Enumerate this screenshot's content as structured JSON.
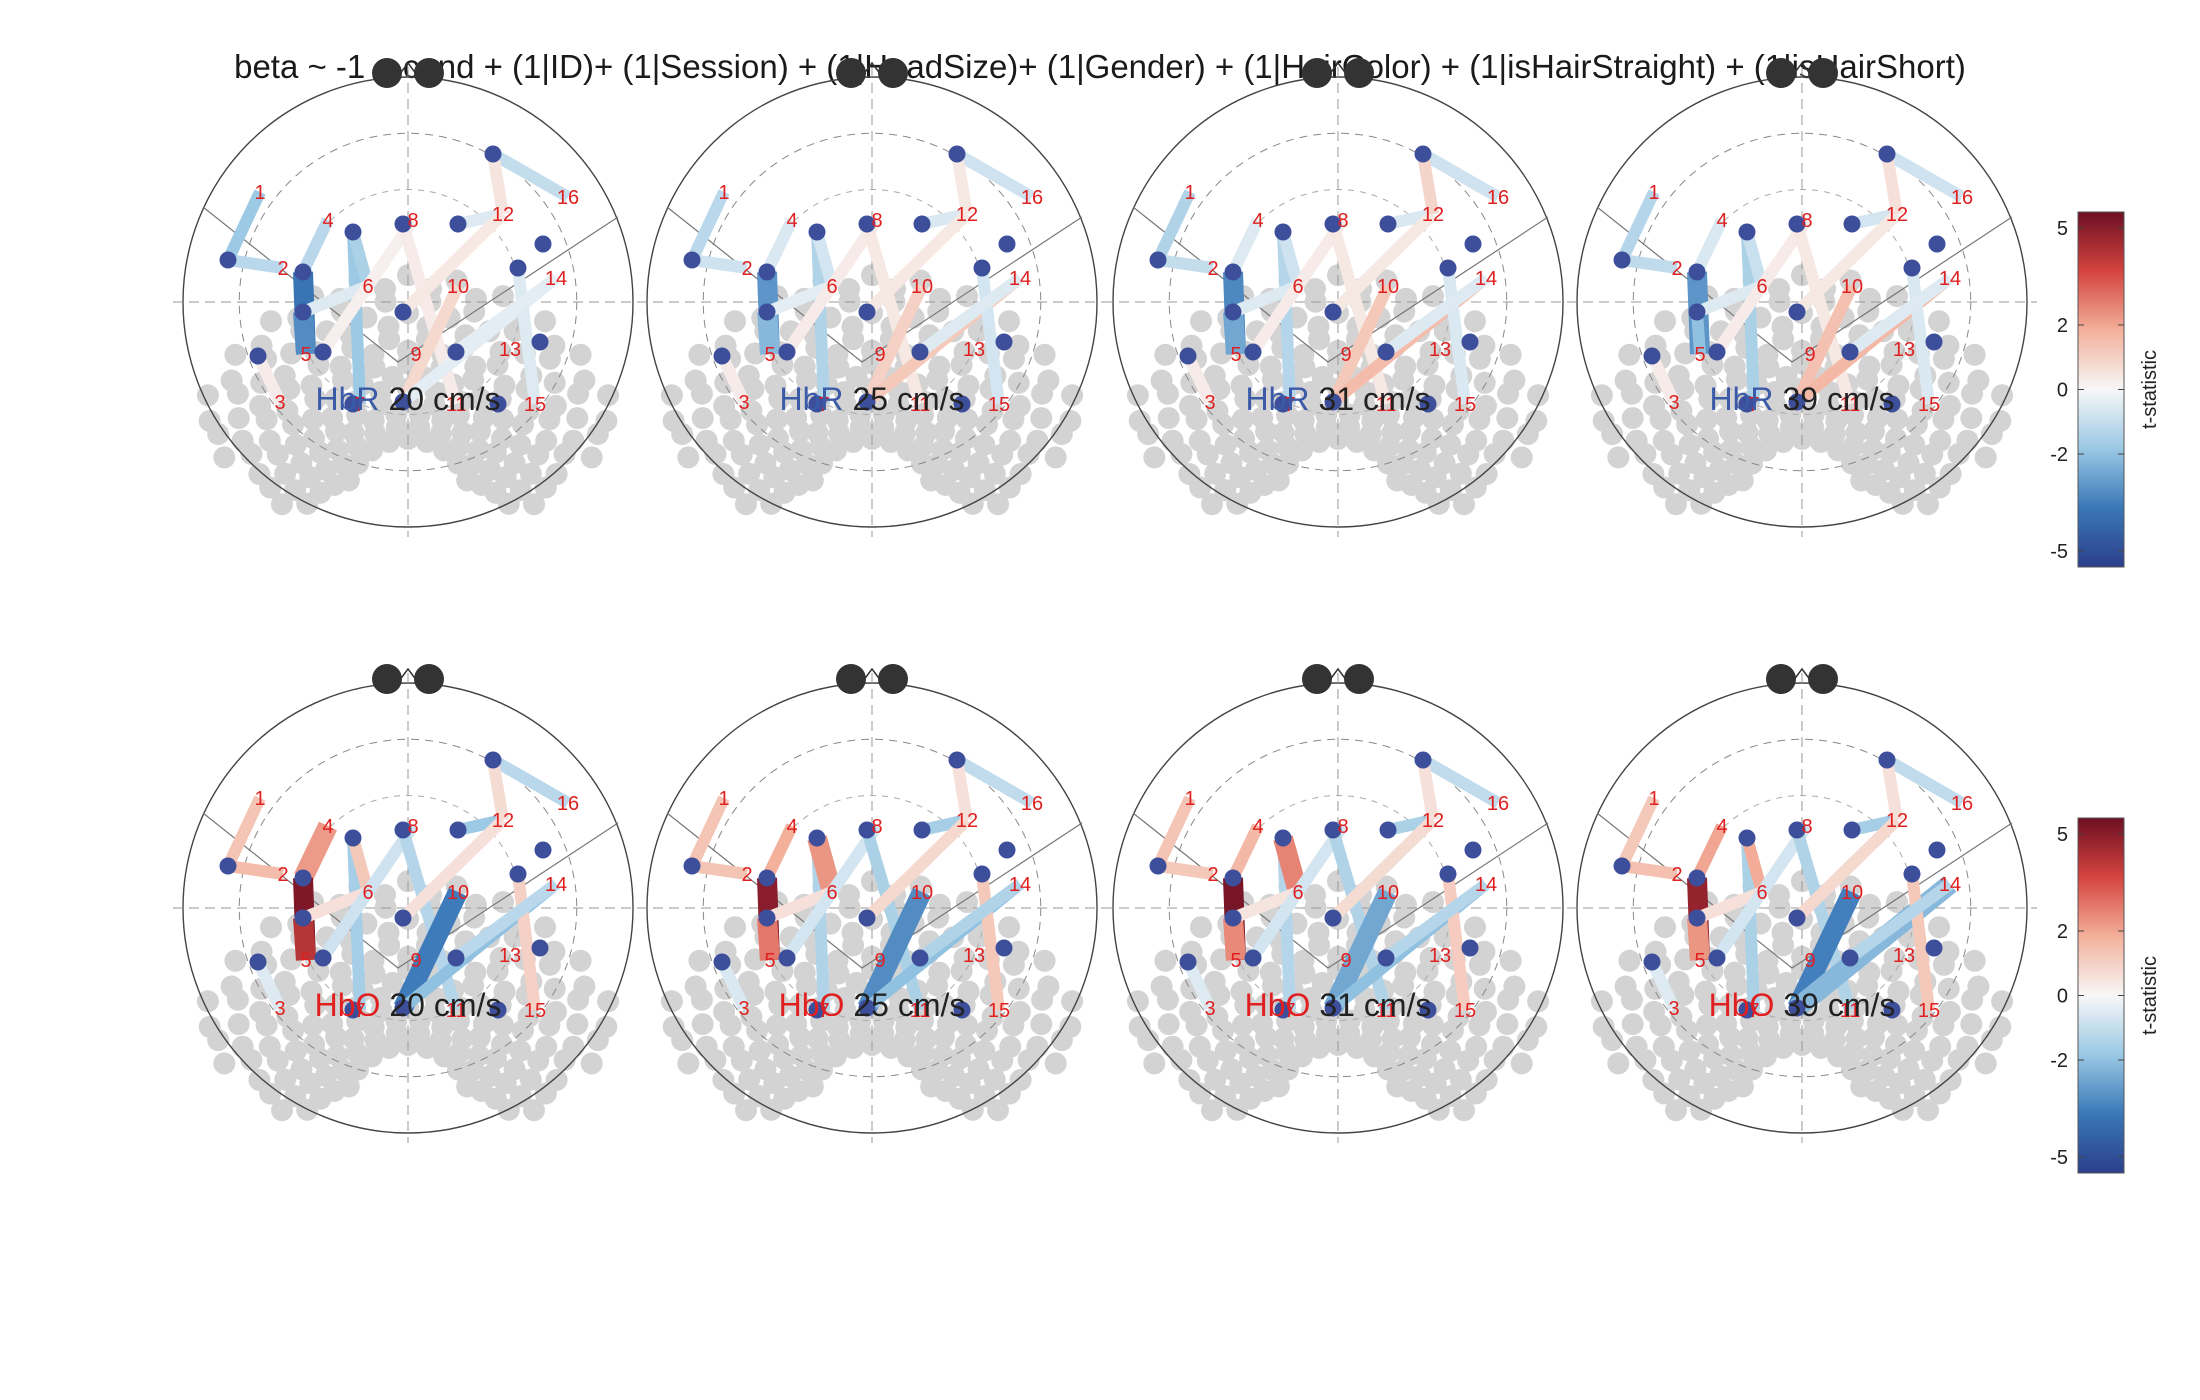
{
  "title": "beta ~ -1 + cond + (1|ID)+ (1|Session) + (1|HeadSize)+ (1|Gender) + (1|HairColor) + (1|isHairStraight) + (1|isHairShort)",
  "colors": {
    "hbr_label": "#3a5aa8",
    "hbo_label": "#e02020",
    "source_dot": "#3d4f9a",
    "detector_text": "#e02020",
    "electrode_dot": "#d3d3d3",
    "nose_dot": "#333333",
    "outline": "#444444",
    "colorscale": [
      "#2c3f8c",
      "#3a78b8",
      "#9ac8e4",
      "#f7f7f7",
      "#f3b09a",
      "#d4443f",
      "#6d0f23"
    ]
  },
  "rows": [
    {
      "chromophore": "HbR",
      "panels": [
        {
          "chromophore": "HbR",
          "speed": "20 cm/s"
        },
        {
          "chromophore": "HbR",
          "speed": "25 cm/s"
        },
        {
          "chromophore": "HbR",
          "speed": "31 cm/s"
        },
        {
          "chromophore": "HbR",
          "speed": "39 cm/s"
        }
      ],
      "colorbar": {
        "label": "t-statistic",
        "ticks": [
          "5",
          "2",
          "0",
          "-2",
          "-5"
        ]
      }
    },
    {
      "chromophore": "HbO",
      "panels": [
        {
          "chromophore": "HbO",
          "speed": "20 cm/s"
        },
        {
          "chromophore": "HbO",
          "speed": "25 cm/s"
        },
        {
          "chromophore": "HbO",
          "speed": "31 cm/s"
        },
        {
          "chromophore": "HbO",
          "speed": "39 cm/s"
        }
      ],
      "colorbar": {
        "label": "t-statistic",
        "ticks": [
          "5",
          "2",
          "0",
          "-2",
          "-5"
        ]
      }
    }
  ],
  "optodes": {
    "sources": [
      "1",
      "2",
      "3",
      "4",
      "5",
      "6",
      "7",
      "8",
      "9",
      "10",
      "11",
      "12",
      "13",
      "14",
      "15",
      "16",
      "17"
    ],
    "detectors": [
      "1",
      "2",
      "3",
      "4",
      "5",
      "6",
      "7",
      "8",
      "9",
      "10",
      "11",
      "12",
      "13",
      "14",
      "15",
      "16"
    ]
  },
  "colorbar_range": [
    -5.5,
    5.5
  ],
  "channels": {
    "note_units": "t-statistic",
    "hbr": [
      [
        [
          1,
          2,
          -1.2
        ],
        [
          2,
          4,
          -1.2
        ],
        [
          4,
          7,
          -1.8
        ],
        [
          4,
          6,
          -1.5
        ],
        [
          2,
          5,
          -3.8
        ],
        [
          5,
          5,
          -3.2
        ],
        [
          1,
          1,
          -1.8
        ],
        [
          5,
          6,
          -0.5
        ],
        [
          6,
          8,
          0.2
        ],
        [
          8,
          11,
          0.3
        ],
        [
          10,
          10,
          0.8
        ],
        [
          10,
          14,
          -0.4
        ],
        [
          14,
          15,
          -0.5
        ],
        [
          12,
          14,
          -0.4
        ],
        [
          11,
          12,
          -0.5
        ],
        [
          13,
          16,
          -1.0
        ],
        [
          9,
          12,
          0.4
        ],
        [
          13,
          12,
          0.5
        ],
        [
          3,
          3,
          0.3
        ]
      ],
      [
        [
          1,
          2,
          -0.8
        ],
        [
          2,
          4,
          -0.6
        ],
        [
          4,
          7,
          -1.4
        ],
        [
          4,
          6,
          -0.7
        ],
        [
          2,
          5,
          -3.0
        ],
        [
          5,
          5,
          -2.2
        ],
        [
          1,
          1,
          -1.2
        ],
        [
          5,
          6,
          -0.4
        ],
        [
          6,
          8,
          0.3
        ],
        [
          8,
          11,
          0.4
        ],
        [
          10,
          10,
          1.0
        ],
        [
          10,
          14,
          1.2
        ],
        [
          14,
          15,
          -0.7
        ],
        [
          12,
          14,
          -0.5
        ],
        [
          11,
          12,
          -0.6
        ],
        [
          13,
          16,
          -0.8
        ],
        [
          9,
          12,
          0.4
        ],
        [
          13,
          12,
          0.4
        ],
        [
          3,
          3,
          0.3
        ]
      ],
      [
        [
          1,
          2,
          -1.0
        ],
        [
          2,
          4,
          -0.5
        ],
        [
          4,
          7,
          -1.3
        ],
        [
          4,
          6,
          -0.8
        ],
        [
          2,
          5,
          -3.3
        ],
        [
          5,
          5,
          -2.6
        ],
        [
          1,
          1,
          -1.4
        ],
        [
          5,
          6,
          -0.5
        ],
        [
          6,
          8,
          0.3
        ],
        [
          8,
          11,
          0.4
        ],
        [
          10,
          10,
          1.2
        ],
        [
          10,
          14,
          1.5
        ],
        [
          14,
          15,
          -0.6
        ],
        [
          12,
          14,
          -0.5
        ],
        [
          11,
          12,
          -0.6
        ],
        [
          13,
          16,
          -0.8
        ],
        [
          9,
          12,
          0.4
        ],
        [
          13,
          12,
          0.9
        ],
        [
          3,
          3,
          0.3
        ]
      ],
      [
        [
          1,
          2,
          -1.1
        ],
        [
          2,
          4,
          -0.6
        ],
        [
          4,
          7,
          -1.5
        ],
        [
          4,
          6,
          -0.9
        ],
        [
          2,
          5,
          -3.0
        ],
        [
          5,
          5,
          -2.0
        ],
        [
          1,
          1,
          -1.3
        ],
        [
          5,
          6,
          -0.5
        ],
        [
          6,
          8,
          0.3
        ],
        [
          8,
          11,
          0.4
        ],
        [
          10,
          10,
          1.4
        ],
        [
          10,
          14,
          1.6
        ],
        [
          14,
          15,
          -0.6
        ],
        [
          12,
          14,
          -0.5
        ],
        [
          11,
          12,
          -0.7
        ],
        [
          13,
          16,
          -0.8
        ],
        [
          9,
          12,
          0.4
        ],
        [
          13,
          12,
          0.6
        ],
        [
          3,
          3,
          0.3
        ]
      ]
    ],
    "hbo": [
      [
        [
          1,
          2,
          1.5
        ],
        [
          2,
          4,
          2.2
        ],
        [
          4,
          7,
          -1.6
        ],
        [
          4,
          6,
          1.2
        ],
        [
          2,
          5,
          5.2
        ],
        [
          5,
          5,
          4.2
        ],
        [
          1,
          1,
          1.3
        ],
        [
          5,
          6,
          0.6
        ],
        [
          6,
          8,
          -0.8
        ],
        [
          8,
          11,
          -1.3
        ],
        [
          10,
          10,
          -3.6
        ],
        [
          10,
          14,
          -2.0
        ],
        [
          14,
          15,
          1.0
        ],
        [
          12,
          14,
          -1.2
        ],
        [
          11,
          12,
          -1.8
        ],
        [
          13,
          16,
          -1.2
        ],
        [
          9,
          12,
          0.6
        ],
        [
          13,
          12,
          0.7
        ],
        [
          3,
          3,
          -0.5
        ]
      ],
      [
        [
          1,
          2,
          1.3
        ],
        [
          2,
          4,
          1.8
        ],
        [
          4,
          7,
          -1.4
        ],
        [
          4,
          6,
          2.3
        ],
        [
          2,
          5,
          5.0
        ],
        [
          5,
          5,
          2.8
        ],
        [
          1,
          1,
          1.3
        ],
        [
          5,
          6,
          0.6
        ],
        [
          6,
          8,
          -0.7
        ],
        [
          8,
          11,
          -1.5
        ],
        [
          10,
          10,
          -3.2
        ],
        [
          10,
          14,
          -2.0
        ],
        [
          14,
          15,
          1.2
        ],
        [
          12,
          14,
          -1.4
        ],
        [
          11,
          12,
          -1.6
        ],
        [
          13,
          16,
          -1.1
        ],
        [
          9,
          12,
          0.8
        ],
        [
          13,
          12,
          0.6
        ],
        [
          3,
          3,
          -0.6
        ]
      ],
      [
        [
          1,
          2,
          1.2
        ],
        [
          2,
          4,
          1.6
        ],
        [
          4,
          7,
          -1.3
        ],
        [
          4,
          6,
          2.6
        ],
        [
          2,
          5,
          5.3
        ],
        [
          5,
          5,
          2.5
        ],
        [
          1,
          1,
          1.3
        ],
        [
          5,
          6,
          0.5
        ],
        [
          6,
          8,
          -0.7
        ],
        [
          8,
          11,
          -1.4
        ],
        [
          10,
          10,
          -2.6
        ],
        [
          10,
          14,
          -2.0
        ],
        [
          14,
          15,
          1.1
        ],
        [
          12,
          14,
          -1.3
        ],
        [
          11,
          12,
          -1.5
        ],
        [
          13,
          16,
          -1.1
        ],
        [
          9,
          12,
          0.7
        ],
        [
          13,
          12,
          0.6
        ],
        [
          3,
          3,
          -0.5
        ]
      ],
      [
        [
          1,
          2,
          1.4
        ],
        [
          2,
          4,
          2.0
        ],
        [
          4,
          7,
          -1.5
        ],
        [
          4,
          6,
          1.9
        ],
        [
          2,
          5,
          4.8
        ],
        [
          5,
          5,
          2.3
        ],
        [
          1,
          1,
          1.2
        ],
        [
          5,
          6,
          0.6
        ],
        [
          6,
          8,
          -0.7
        ],
        [
          8,
          11,
          -1.4
        ],
        [
          10,
          10,
          -3.5
        ],
        [
          10,
          14,
          -2.2
        ],
        [
          14,
          15,
          1.2
        ],
        [
          12,
          14,
          -1.3
        ],
        [
          11,
          12,
          -1.6
        ],
        [
          13,
          16,
          -1.1
        ],
        [
          9,
          12,
          0.8
        ],
        [
          13,
          12,
          0.6
        ],
        [
          3,
          3,
          -0.5
        ]
      ]
    ]
  }
}
